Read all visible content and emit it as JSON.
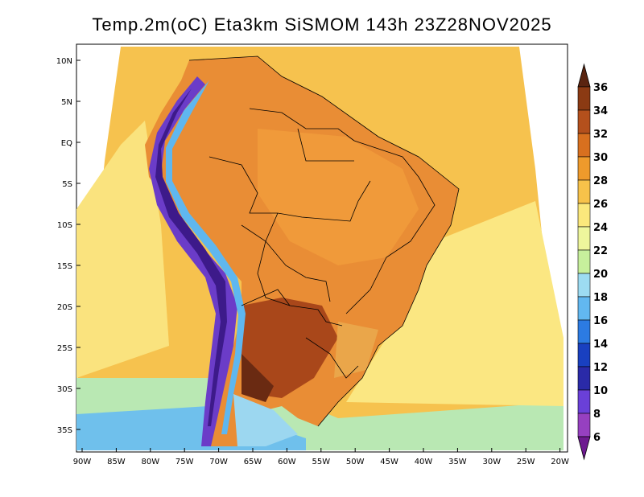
{
  "title": "Temp.2m(oC) Eta3km SiSMOM 143h 23Z28NOV2025",
  "lat_labels": [
    "10N",
    "5N",
    "EQ",
    "5S",
    "10S",
    "15S",
    "20S",
    "25S",
    "30S",
    "35S"
  ],
  "lon_labels": [
    "90W",
    "85W",
    "80W",
    "75W",
    "70W",
    "65W",
    "60W",
    "55W",
    "50W",
    "45W",
    "40W",
    "35W",
    "30W",
    "25W",
    "20W"
  ],
  "colorbar": {
    "levels": [
      "36",
      "34",
      "32",
      "30",
      "28",
      "26",
      "24",
      "22",
      "20",
      "18",
      "16",
      "14",
      "12",
      "10",
      "8",
      "6"
    ],
    "colors": [
      "#5a2410",
      "#8b3a13",
      "#b4501c",
      "#d8701f",
      "#ee9a2c",
      "#f7c24a",
      "#fbe87c",
      "#eef69c",
      "#c7f09c",
      "#9ddcf2",
      "#62b8f0",
      "#2c7be2",
      "#1940c0",
      "#2a2aa8",
      "#6a40d8",
      "#9640c0",
      "#6e1a90"
    ]
  },
  "colors": {
    "ocean": "#f6d27a",
    "land": "#e99138",
    "andes": "#6b3cc8"
  }
}
